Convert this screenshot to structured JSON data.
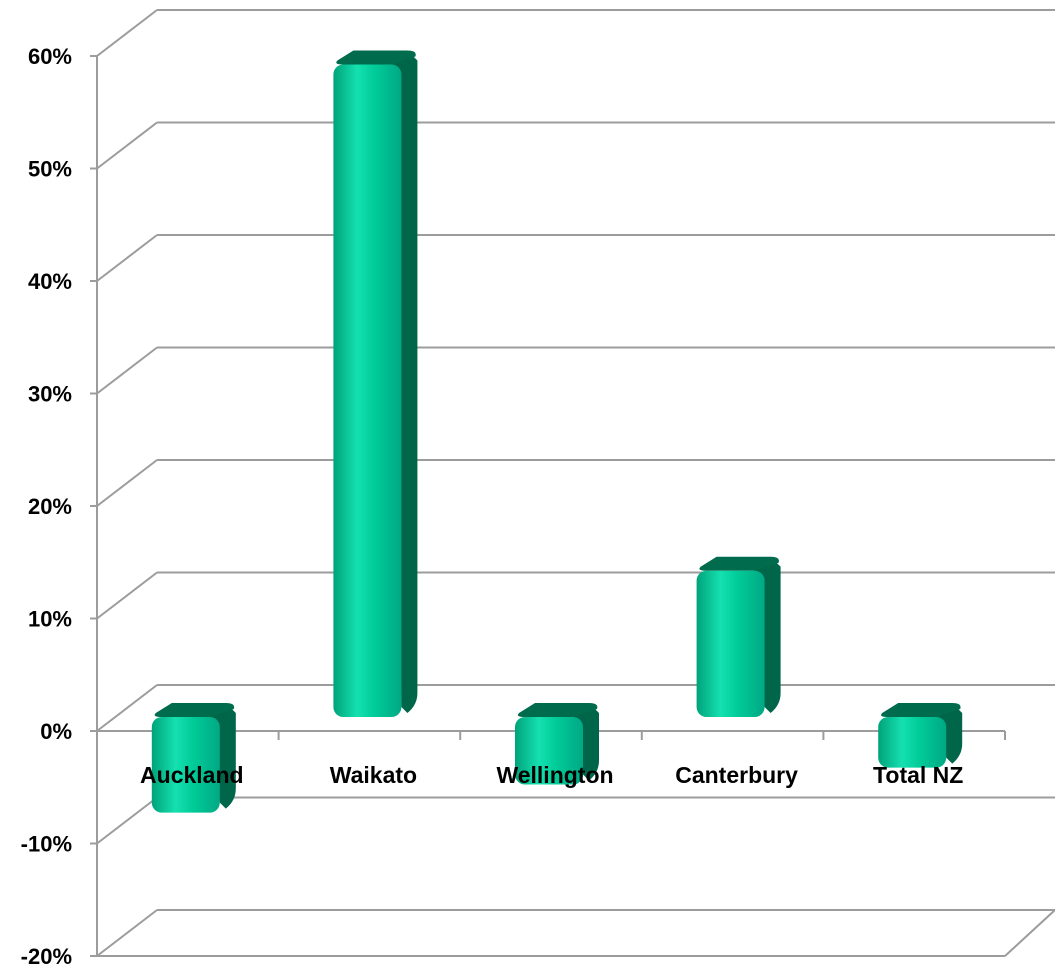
{
  "chart_data": {
    "type": "bar",
    "title": "",
    "xlabel": "",
    "ylabel": "",
    "categories": [
      "Auckland",
      "Waikato",
      "Wellington",
      "Canterbury",
      "Total NZ"
    ],
    "values": [
      -8.5,
      58,
      -6,
      13,
      -4.5
    ],
    "ylim": [
      -20,
      60
    ],
    "y_ticks": [
      -20,
      -10,
      0,
      10,
      20,
      30,
      40,
      50,
      60
    ],
    "y_tick_labels": [
      "-20%",
      "-10%",
      "0%",
      "10%",
      "20%",
      "30%",
      "40%",
      "50%",
      "60%"
    ],
    "grid": true,
    "legend": "none",
    "style": "3d-cylinder",
    "colors": {
      "bar_front": "#00cc99",
      "bar_side": "#00664a",
      "bar_top": "#006b4d",
      "grid": "#9c9c9c"
    }
  }
}
